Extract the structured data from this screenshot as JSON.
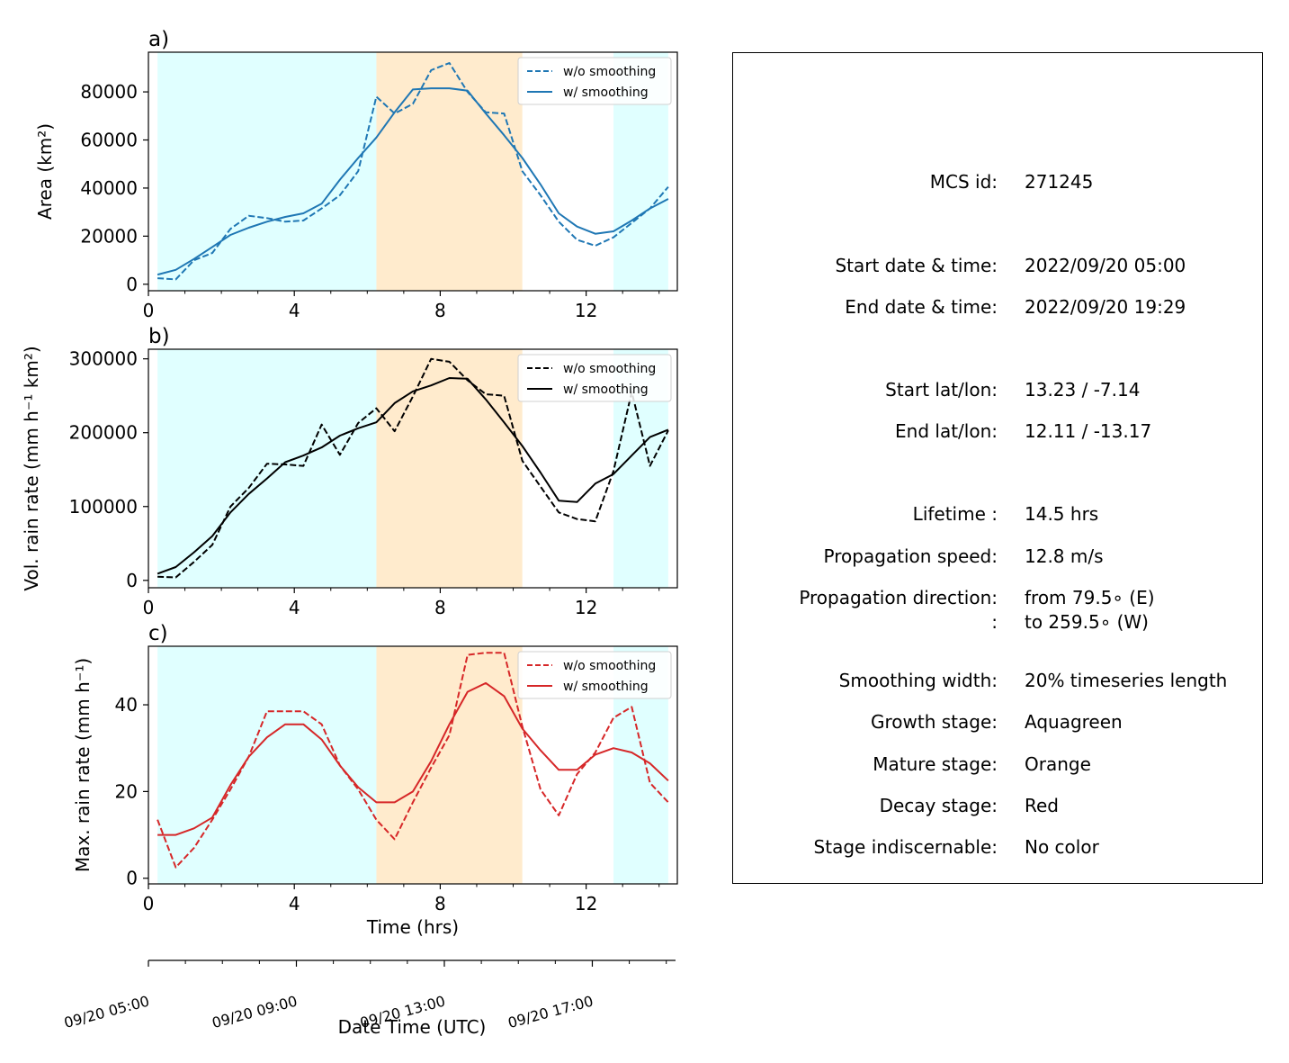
{
  "chart_data": [
    {
      "type": "line",
      "panel_label": "a)",
      "ylabel": "Area  (km²)",
      "xlim": [
        0,
        14.5
      ],
      "ylim": [
        -2700,
        96500
      ],
      "x_ticks": [
        0,
        4,
        8,
        12
      ],
      "y_ticks": [
        0,
        20000,
        40000,
        60000,
        80000
      ],
      "x": [
        0.25,
        0.75,
        1.25,
        1.75,
        2.25,
        2.75,
        3.25,
        3.75,
        4.25,
        4.75,
        5.25,
        5.75,
        6.25,
        6.75,
        7.25,
        7.75,
        8.25,
        8.75,
        9.25,
        9.75,
        10.25,
        10.75,
        11.25,
        11.75,
        12.25,
        12.75,
        13.25,
        13.75,
        14.25
      ],
      "series": [
        {
          "name": "w/o smoothing",
          "style": "dashed",
          "color": "#1f77b4",
          "values": [
            2500,
            2000,
            10000,
            13000,
            23000,
            28500,
            27500,
            26000,
            26500,
            31500,
            37000,
            47000,
            78000,
            71000,
            75000,
            89000,
            92000,
            80000,
            71500,
            71000,
            47000,
            37000,
            26000,
            18500,
            16000,
            19500,
            25500,
            31500,
            40500
          ]
        },
        {
          "name": "w/ smoothing",
          "style": "solid",
          "color": "#1f77b4",
          "values": [
            4000,
            6000,
            10500,
            15500,
            20500,
            23500,
            26000,
            28000,
            29500,
            33500,
            43500,
            52500,
            61000,
            71500,
            81000,
            81500,
            81500,
            80500,
            71000,
            62000,
            52500,
            41500,
            29500,
            24000,
            21000,
            22000,
            26500,
            31500,
            35500
          ]
        }
      ],
      "stages": [
        {
          "stage": "growth",
          "x": [
            0.25,
            6.25
          ],
          "color": "#e0ffff"
        },
        {
          "stage": "mature",
          "x": [
            6.25,
            10.25
          ],
          "color": "#ffebcd"
        },
        {
          "stage": "growth",
          "x": [
            12.75,
            14.25
          ],
          "color": "#e0ffff"
        }
      ],
      "legend_position": "top-right"
    },
    {
      "type": "line",
      "panel_label": "b)",
      "ylabel": "Vol. rain rate (mm h⁻¹ km²)",
      "xlim": [
        0,
        14.5
      ],
      "ylim": [
        -10000,
        313000
      ],
      "x_ticks": [
        0,
        4,
        8,
        12
      ],
      "y_ticks": [
        0,
        100000,
        200000,
        300000
      ],
      "x": [
        0.25,
        0.75,
        1.25,
        1.75,
        2.25,
        2.75,
        3.25,
        3.75,
        4.25,
        4.75,
        5.25,
        5.75,
        6.25,
        6.75,
        7.25,
        7.75,
        8.25,
        8.75,
        9.25,
        9.75,
        10.25,
        10.75,
        11.25,
        11.75,
        12.25,
        12.75,
        13.25,
        13.75,
        14.25
      ],
      "series": [
        {
          "name": "w/o smoothing",
          "style": "dashed",
          "color": "#000000",
          "values": [
            5000,
            4000,
            25000,
            48000,
            100000,
            125000,
            158000,
            157000,
            155000,
            211000,
            170000,
            213000,
            233000,
            202000,
            249000,
            300000,
            296000,
            271000,
            252000,
            250000,
            162000,
            127000,
            92000,
            83000,
            80000,
            148000,
            255000,
            155000,
            203000
          ]
        },
        {
          "name": "w/ smoothing",
          "style": "solid",
          "color": "#000000",
          "values": [
            9000,
            18000,
            38000,
            60000,
            92000,
            117000,
            138000,
            160000,
            169000,
            180000,
            196000,
            206000,
            214000,
            240000,
            256000,
            264000,
            274000,
            273000,
            245000,
            214000,
            182000,
            146000,
            108000,
            106000,
            131000,
            144000,
            169000,
            194000,
            204000
          ]
        }
      ],
      "stages": [
        {
          "stage": "growth",
          "x": [
            0.25,
            6.25
          ],
          "color": "#e0ffff"
        },
        {
          "stage": "mature",
          "x": [
            6.25,
            10.25
          ],
          "color": "#ffebcd"
        },
        {
          "stage": "growth",
          "x": [
            12.75,
            14.25
          ],
          "color": "#e0ffff"
        }
      ],
      "legend_position": "top-right"
    },
    {
      "type": "line",
      "panel_label": "c)",
      "ylabel": "Max. rain rate  (mm h⁻¹)",
      "xlabel": "Time (hrs)",
      "xlim": [
        0,
        14.5
      ],
      "ylim": [
        -1.3,
        53.5
      ],
      "x_ticks": [
        0,
        4,
        8,
        12
      ],
      "y_ticks": [
        0,
        20,
        40
      ],
      "x": [
        0.25,
        0.75,
        1.25,
        1.75,
        2.25,
        2.75,
        3.25,
        3.75,
        4.25,
        4.75,
        5.25,
        5.75,
        6.25,
        6.75,
        7.25,
        7.75,
        8.25,
        8.75,
        9.25,
        9.75,
        10.25,
        10.75,
        11.25,
        11.75,
        12.25,
        12.75,
        13.25,
        13.75,
        14.25
      ],
      "series": [
        {
          "name": "w/o smoothing",
          "style": "dashed",
          "color": "#d62728",
          "values": [
            13.5,
            2.5,
            7.0,
            13.5,
            20.5,
            28.0,
            38.5,
            38.5,
            38.5,
            35.5,
            26.0,
            20.5,
            13.5,
            9.0,
            17.5,
            25.5,
            33.0,
            51.5,
            52.0,
            52.0,
            35.0,
            20.5,
            14.5,
            24.0,
            29.0,
            37.0,
            39.5,
            22.0,
            17.5
          ]
        },
        {
          "name": "w/ smoothing",
          "style": "solid",
          "color": "#d62728",
          "values": [
            10.0,
            10.0,
            11.5,
            14.0,
            21.5,
            28.0,
            32.5,
            35.5,
            35.5,
            32.0,
            26.0,
            21.0,
            17.5,
            17.5,
            20.0,
            27.0,
            35.5,
            43.0,
            45.0,
            42.0,
            34.5,
            29.5,
            25.0,
            25.0,
            28.5,
            30.0,
            29.0,
            26.5,
            22.5
          ]
        }
      ],
      "stages": [
        {
          "stage": "growth",
          "x": [
            0.25,
            6.25
          ],
          "color": "#e0ffff"
        },
        {
          "stage": "mature",
          "x": [
            6.25,
            10.25
          ],
          "color": "#ffebcd"
        },
        {
          "stage": "growth",
          "x": [
            12.75,
            14.25
          ],
          "color": "#e0ffff"
        }
      ],
      "legend_position": "top-right"
    }
  ],
  "date_axis": {
    "xlabel": "Date Time (UTC)",
    "major_ticks": [
      {
        "hour": 0,
        "label": "09/20 05:00"
      },
      {
        "hour": 4,
        "label": "09/20 09:00"
      },
      {
        "hour": 8,
        "label": "09/20 13:00"
      },
      {
        "hour": 12,
        "label": "09/20 17:00"
      }
    ],
    "minor_tick_hours": [
      1,
      2,
      3,
      5,
      6,
      7,
      9,
      10,
      11,
      13,
      14
    ]
  },
  "info_panel": {
    "rows": [
      {
        "key": "MCS id:",
        "value": "271245"
      },
      {
        "key": "Start date & time:",
        "value": "2022/09/20 05:00"
      },
      {
        "key": "End date & time:",
        "value": "2022/09/20 19:29"
      },
      {
        "key": "Start lat/lon:",
        "value": "13.23 / -7.14"
      },
      {
        "key": "End lat/lon:",
        "value": "12.11 / -13.17"
      },
      {
        "key": "Lifetime :",
        "value": "14.5 hrs"
      },
      {
        "key": "Propagation speed:",
        "value": "12.8 m/s"
      },
      {
        "key": "Propagation direction:",
        "value": "from  79.5∘ (E)"
      },
      {
        "key": ":",
        "value": "to   259.5∘ (W)"
      },
      {
        "key": "Smoothing width:",
        "value": "20% timeseries length"
      },
      {
        "key": "Growth stage:",
        "value": "Aquagreen"
      },
      {
        "key": "Mature stage:",
        "value": "Orange"
      },
      {
        "key": "Decay stage:",
        "value": "Red"
      },
      {
        "key": "Stage indiscernable:",
        "value": "No color"
      }
    ]
  }
}
